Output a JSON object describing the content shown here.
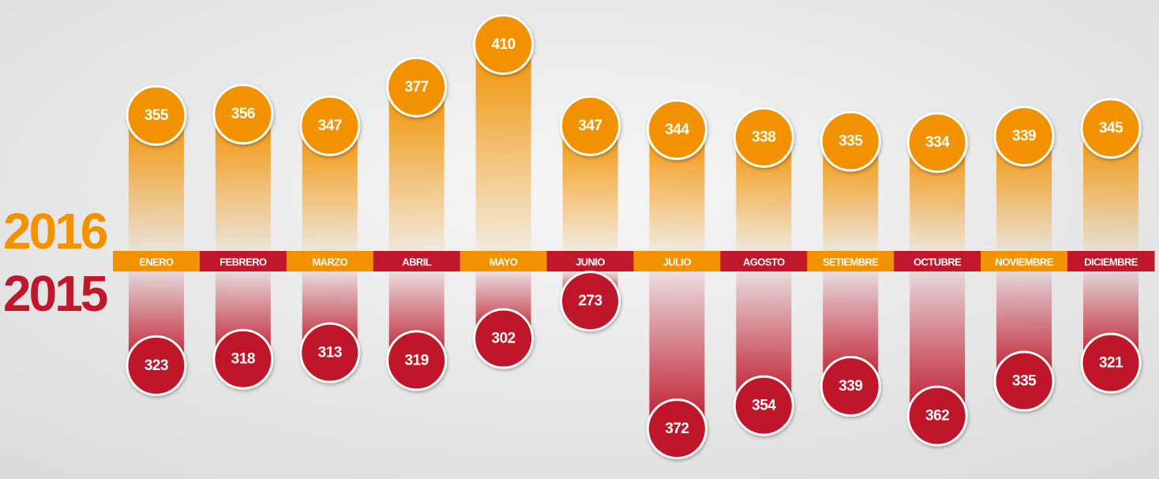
{
  "chart_data": {
    "type": "diverging-bubble-bar",
    "categories": [
      "ENERO",
      "FEBRERO",
      "MARZO",
      "ABRIL",
      "MAYO",
      "JUNIO",
      "JULIO",
      "AGOSTO",
      "SETIEMBRE",
      "OCTUBRE",
      "NOVIEMBRE",
      "DICIEMBRE"
    ],
    "series": [
      {
        "name": "2016",
        "color": "#f39200",
        "values": [
          355,
          356,
          347,
          377,
          410,
          347,
          344,
          338,
          335,
          334,
          339,
          345
        ]
      },
      {
        "name": "2015",
        "color": "#c0182a",
        "values": [
          323,
          318,
          313,
          319,
          302,
          273,
          372,
          354,
          339,
          362,
          335,
          321
        ]
      }
    ],
    "ylim": [
      250,
      420
    ]
  }
}
